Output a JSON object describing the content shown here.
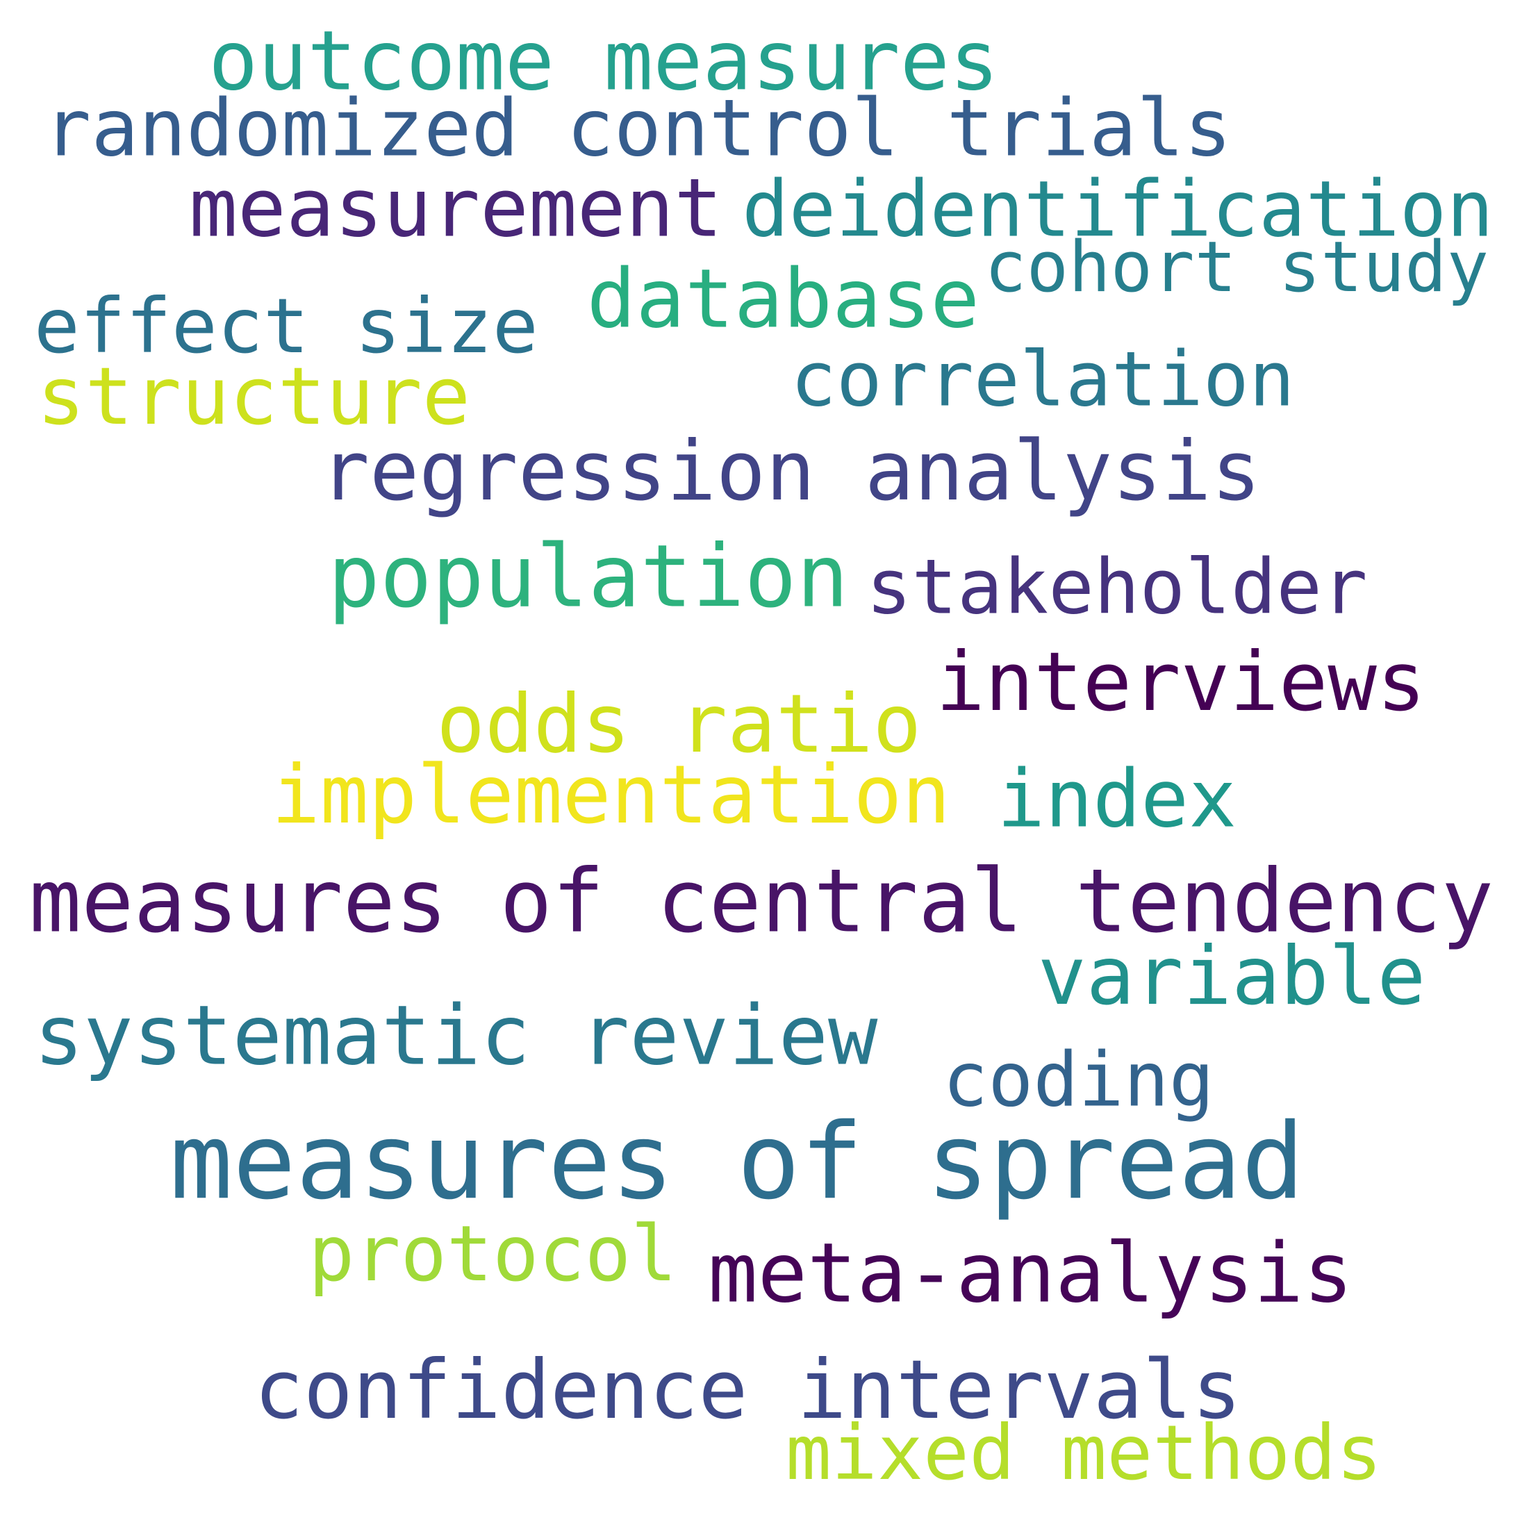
{
  "words": [
    {
      "text": "outcome measures",
      "color": "#25a18e"
    },
    {
      "text": "randomized control trials",
      "color": "#365d8d"
    },
    {
      "text": "measurement",
      "color": "#482677"
    },
    {
      "text": "deidentification",
      "color": "#23898e"
    },
    {
      "text": "cohort study",
      "color": "#277f8e"
    },
    {
      "text": "database",
      "color": "#28ae80"
    },
    {
      "text": "effect size",
      "color": "#2c728e"
    },
    {
      "text": "structure",
      "color": "#cde11d"
    },
    {
      "text": "correlation",
      "color": "#2a788e"
    },
    {
      "text": "regression analysis",
      "color": "#414487"
    },
    {
      "text": "population",
      "color": "#2db27d"
    },
    {
      "text": "stakeholder",
      "color": "#46337e"
    },
    {
      "text": "interviews",
      "color": "#440154"
    },
    {
      "text": "odds ratio",
      "color": "#d0e11c"
    },
    {
      "text": "implementation",
      "color": "#f1e51d"
    },
    {
      "text": "index",
      "color": "#1f988b"
    },
    {
      "text": "measures of central tendency",
      "color": "#481467"
    },
    {
      "text": "variable",
      "color": "#21918c"
    },
    {
      "text": "systematic review",
      "color": "#2a788e"
    },
    {
      "text": "coding",
      "color": "#33638d"
    },
    {
      "text": "measures of spread",
      "color": "#2e6e8e"
    },
    {
      "text": "protocol",
      "color": "#a0da39"
    },
    {
      "text": "meta-analysis",
      "color": "#450457"
    },
    {
      "text": "confidence intervals",
      "color": "#3e4a89"
    },
    {
      "text": "mixed methods",
      "color": "#b5de2b"
    }
  ]
}
